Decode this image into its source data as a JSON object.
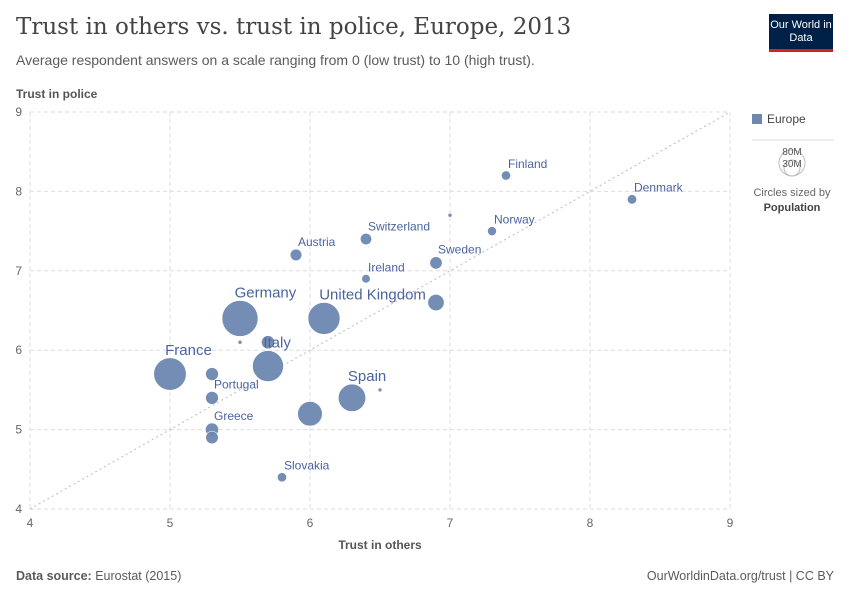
{
  "title": "Trust in others vs. trust in police, Europe, 2013",
  "subtitle": "Average respondent answers on a scale ranging from 0 (low trust) to 10 (high trust).",
  "logo": "Our World in Data",
  "footer": {
    "source_label": "Data source:",
    "source": "Eurostat (2015)",
    "url": "OurWorldinData.org/trust | CC BY"
  },
  "colors": {
    "point": "#6d87b0",
    "label": "#4a64a0"
  },
  "legend": {
    "series": "Europe",
    "size_values": [
      "80M",
      "30M"
    ],
    "size_caption": "Circles sized by",
    "size_variable": "Population"
  },
  "chart_data": {
    "type": "scatter",
    "xlabel": "Trust in others",
    "ylabel": "Trust in police",
    "xlim": [
      4,
      9
    ],
    "ylim": [
      4,
      9
    ],
    "xticks": [
      "4",
      "5",
      "6",
      "7",
      "8",
      "9"
    ],
    "yticks": [
      "4",
      "5",
      "6",
      "7",
      "8",
      "9"
    ],
    "grid": true,
    "reference_line": "y = x",
    "points": [
      {
        "name": "Germany",
        "x": 5.5,
        "y": 6.4,
        "pop": 81
      },
      {
        "name": "United Kingdom",
        "x": 6.1,
        "y": 6.4,
        "pop": 64
      },
      {
        "name": "France",
        "x": 5.0,
        "y": 5.7,
        "pop": 66
      },
      {
        "name": "Italy",
        "x": 5.7,
        "y": 5.8,
        "pop": 60
      },
      {
        "name": "Spain",
        "x": 6.3,
        "y": 5.4,
        "pop": 47
      },
      {
        "name": "",
        "x": 6.0,
        "y": 5.2,
        "pop": 38
      },
      {
        "name": "Finland",
        "x": 7.4,
        "y": 8.2,
        "pop": 5.4
      },
      {
        "name": "Denmark",
        "x": 8.3,
        "y": 7.9,
        "pop": 5.6
      },
      {
        "name": "",
        "x": 7.0,
        "y": 7.7,
        "pop": 0.3
      },
      {
        "name": "Norway",
        "x": 7.3,
        "y": 7.5,
        "pop": 5.1
      },
      {
        "name": "Switzerland",
        "x": 6.4,
        "y": 7.4,
        "pop": 8.1
      },
      {
        "name": "Austria",
        "x": 5.9,
        "y": 7.2,
        "pop": 8.5
      },
      {
        "name": "Sweden",
        "x": 6.9,
        "y": 7.1,
        "pop": 9.6
      },
      {
        "name": "Ireland",
        "x": 6.4,
        "y": 6.9,
        "pop": 4.6
      },
      {
        "name": "",
        "x": 6.9,
        "y": 6.6,
        "pop": 16.8
      },
      {
        "name": "",
        "x": 5.5,
        "y": 6.1,
        "pop": 0.5
      },
      {
        "name": "",
        "x": 5.7,
        "y": 6.1,
        "pop": 11
      },
      {
        "name": "",
        "x": 5.3,
        "y": 5.7,
        "pop": 10.5
      },
      {
        "name": "Portugal",
        "x": 5.3,
        "y": 5.4,
        "pop": 10.4
      },
      {
        "name": "",
        "x": 6.5,
        "y": 5.5,
        "pop": 0.9
      },
      {
        "name": "Greece",
        "x": 5.3,
        "y": 5.0,
        "pop": 11
      },
      {
        "name": "",
        "x": 5.3,
        "y": 4.9,
        "pop": 9.9
      },
      {
        "name": "Slovakia",
        "x": 5.8,
        "y": 4.4,
        "pop": 5.4
      }
    ]
  }
}
